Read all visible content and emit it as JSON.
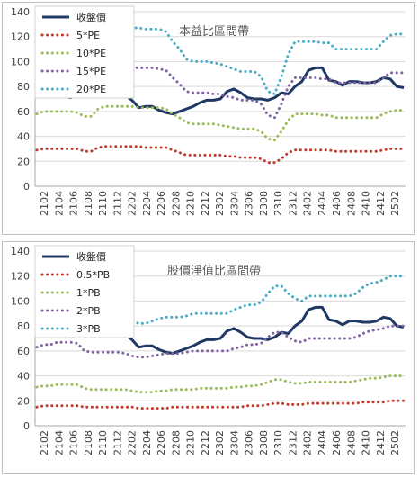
{
  "chart_data": [
    {
      "type": "line",
      "title": "本益比區間帶",
      "ylim": [
        0,
        140
      ],
      "yticks": [
        0,
        20,
        40,
        60,
        80,
        100,
        120,
        140
      ],
      "xtick_labels": [
        "2102",
        "2104",
        "2106",
        "2108",
        "2110",
        "2112",
        "2202",
        "2204",
        "2206",
        "2208",
        "2210",
        "2212",
        "2302",
        "2304",
        "2306",
        "2308",
        "2310",
        "2312",
        "2402",
        "2404",
        "2406",
        "2408",
        "2410",
        "2412",
        "2502"
      ],
      "legend_position": "top-left",
      "grid": true,
      "series": [
        {
          "name": "收盤價",
          "color": "#1f3864",
          "style": "solid",
          "values": [
            83,
            84,
            80,
            76,
            72,
            71,
            74,
            74,
            76,
            73,
            76,
            78,
            76,
            73,
            69,
            63,
            64,
            64,
            61,
            59,
            58,
            60,
            62,
            64,
            67,
            69,
            69,
            70,
            76,
            78,
            75,
            71,
            70,
            70,
            69,
            71,
            75,
            74,
            80,
            84,
            93,
            95,
            95,
            85,
            84,
            81,
            84,
            84,
            83,
            83,
            84,
            87,
            86,
            80,
            79
          ]
        },
        {
          "name": "5*PE",
          "color": "#c0392b",
          "style": "dotted",
          "values": [
            29,
            30,
            30,
            30,
            30,
            30,
            30,
            28,
            28,
            31,
            32,
            32,
            32,
            32,
            32,
            32,
            31,
            31,
            31,
            31,
            29,
            27,
            25,
            25,
            25,
            25,
            25,
            25,
            24,
            24,
            23,
            23,
            23,
            22,
            19,
            19,
            22,
            27,
            29,
            29,
            29,
            29,
            29,
            29,
            28,
            28,
            28,
            28,
            28,
            28,
            28,
            29,
            30,
            30,
            30
          ]
        },
        {
          "name": "10*PE",
          "color": "#9bbb59",
          "style": "dotted",
          "values": [
            58,
            60,
            60,
            60,
            60,
            60,
            59,
            56,
            56,
            62,
            64,
            64,
            64,
            64,
            64,
            63,
            63,
            63,
            63,
            62,
            58,
            55,
            51,
            50,
            50,
            50,
            50,
            49,
            48,
            47,
            46,
            46,
            46,
            44,
            38,
            37,
            44,
            53,
            58,
            58,
            58,
            58,
            57,
            57,
            55,
            55,
            55,
            55,
            55,
            55,
            55,
            58,
            60,
            61,
            61
          ]
        },
        {
          "name": "15*PE",
          "color": "#8064a2",
          "style": "dotted",
          "values": [
            87,
            90,
            90,
            90,
            90,
            90,
            89,
            84,
            84,
            93,
            96,
            96,
            96,
            95,
            95,
            95,
            95,
            95,
            94,
            93,
            87,
            82,
            76,
            75,
            75,
            75,
            74,
            74,
            72,
            71,
            69,
            69,
            69,
            66,
            57,
            55,
            66,
            80,
            87,
            87,
            87,
            87,
            86,
            86,
            83,
            83,
            83,
            83,
            83,
            83,
            83,
            87,
            91,
            91,
            91
          ]
        },
        {
          "name": "20*PE",
          "color": "#4bacc6",
          "style": "dotted",
          "values": [
            116,
            120,
            120,
            120,
            120,
            120,
            118,
            112,
            112,
            124,
            128,
            128,
            128,
            127,
            127,
            127,
            126,
            126,
            126,
            124,
            116,
            110,
            102,
            100,
            100,
            100,
            99,
            98,
            96,
            94,
            92,
            92,
            92,
            88,
            76,
            74,
            88,
            106,
            116,
            116,
            116,
            116,
            115,
            115,
            110,
            110,
            110,
            110,
            110,
            110,
            110,
            116,
            121,
            122,
            122
          ]
        }
      ]
    },
    {
      "type": "line",
      "title": "股價淨值比區間帶",
      "ylim": [
        0,
        140
      ],
      "yticks": [
        0,
        20,
        40,
        60,
        80,
        100,
        120,
        140
      ],
      "xtick_labels": [
        "2102",
        "2104",
        "2106",
        "2108",
        "2110",
        "2112",
        "2202",
        "2204",
        "2206",
        "2208",
        "2210",
        "2212",
        "2302",
        "2304",
        "2306",
        "2308",
        "2310",
        "2312",
        "2402",
        "2404",
        "2406",
        "2408",
        "2410",
        "2412",
        "2502"
      ],
      "legend_position": "top-left",
      "grid": true,
      "series": [
        {
          "name": "收盤價",
          "color": "#1f3864",
          "style": "solid",
          "values": [
            83,
            84,
            80,
            76,
            72,
            71,
            74,
            74,
            76,
            73,
            76,
            78,
            76,
            73,
            69,
            63,
            64,
            64,
            61,
            59,
            58,
            60,
            62,
            64,
            67,
            69,
            69,
            70,
            76,
            78,
            75,
            71,
            70,
            70,
            69,
            71,
            75,
            74,
            80,
            84,
            93,
            95,
            95,
            85,
            84,
            81,
            84,
            84,
            83,
            83,
            84,
            87,
            86,
            80,
            79
          ]
        },
        {
          "name": "0.5*PB",
          "color": "#c0392b",
          "style": "dotted",
          "values": [
            15,
            16,
            16,
            16,
            16,
            16,
            16,
            15,
            15,
            15,
            15,
            15,
            15,
            15,
            15,
            14,
            14,
            14,
            14,
            14,
            15,
            15,
            15,
            15,
            15,
            15,
            15,
            15,
            15,
            15,
            15,
            16,
            16,
            16,
            17,
            18,
            18,
            17,
            17,
            17,
            18,
            18,
            18,
            18,
            18,
            18,
            18,
            18,
            19,
            19,
            19,
            19,
            20,
            20,
            20
          ]
        },
        {
          "name": "1*PB",
          "color": "#9bbb59",
          "style": "dotted",
          "values": [
            31,
            32,
            32,
            33,
            33,
            33,
            33,
            30,
            29,
            29,
            29,
            29,
            29,
            29,
            28,
            27,
            27,
            27,
            28,
            28,
            29,
            29,
            29,
            29,
            30,
            30,
            30,
            30,
            30,
            31,
            31,
            32,
            32,
            33,
            35,
            37,
            37,
            35,
            34,
            34,
            35,
            35,
            35,
            35,
            35,
            35,
            35,
            36,
            37,
            38,
            38,
            39,
            40,
            40,
            40
          ]
        },
        {
          "name": "2*PB",
          "color": "#8064a2",
          "style": "dotted",
          "values": [
            63,
            65,
            65,
            67,
            67,
            67,
            66,
            60,
            59,
            59,
            59,
            59,
            59,
            58,
            56,
            55,
            55,
            56,
            57,
            58,
            58,
            58,
            59,
            60,
            60,
            60,
            60,
            60,
            60,
            62,
            63,
            65,
            65,
            66,
            71,
            75,
            75,
            71,
            68,
            67,
            70,
            70,
            70,
            70,
            70,
            70,
            70,
            71,
            74,
            76,
            77,
            78,
            80,
            80,
            80
          ]
        },
        {
          "name": "3*PB",
          "color": "#4bacc6",
          "style": "dotted",
          "values": [
            94,
            97,
            97,
            100,
            100,
            100,
            99,
            90,
            88,
            88,
            88,
            88,
            88,
            87,
            84,
            82,
            82,
            84,
            86,
            87,
            87,
            87,
            88,
            90,
            90,
            90,
            90,
            90,
            90,
            93,
            95,
            97,
            97,
            99,
            106,
            112,
            112,
            106,
            102,
            100,
            104,
            104,
            104,
            104,
            104,
            104,
            104,
            106,
            111,
            114,
            115,
            117,
            120,
            120,
            120
          ]
        }
      ]
    }
  ]
}
